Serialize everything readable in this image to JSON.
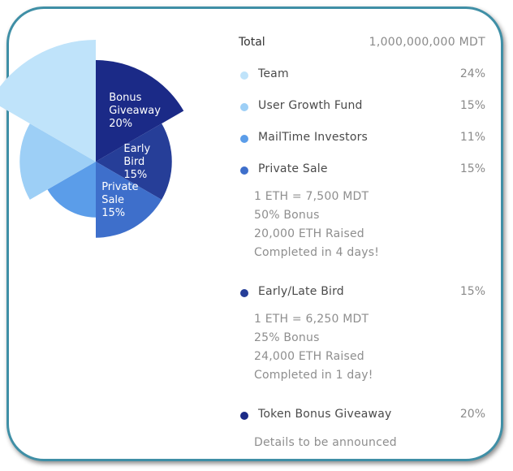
{
  "total": {
    "label": "Total",
    "value": "1,000,000,000 MDT"
  },
  "colors": {
    "team": "#bfe3fa",
    "user_growth": "#9dcff6",
    "investors": "#5b9de9",
    "private_sale": "#3e6fcb",
    "early_bird": "#263e98",
    "bonus": "#1b2a87"
  },
  "allocations": [
    {
      "name": "Team",
      "pct": "24%"
    },
    {
      "name": "User Growth Fund",
      "pct": "15%"
    },
    {
      "name": "MailTime Investors",
      "pct": "11%"
    },
    {
      "name": "Private Sale",
      "pct": "15%"
    },
    {
      "name": "Early/Late Bird",
      "pct": "15%"
    },
    {
      "name": "Token Bonus Giveaway",
      "pct": "20%"
    }
  ],
  "private_sale_details": [
    "1 ETH = 7,500 MDT",
    "50% Bonus",
    "20,000 ETH Raised",
    "Completed in 4 days!"
  ],
  "early_bird_details": [
    "1 ETH = 6,250 MDT",
    "25% Bonus",
    "24,000 ETH Raised",
    "Completed in 1 day!"
  ],
  "bonus_details": [
    "Details to be announced"
  ],
  "chart_data": {
    "type": "pie",
    "variant": "polar-area",
    "slices": [
      {
        "name": "Bonus Giveaway",
        "value": 20,
        "label_lines": [
          "Bonus",
          "Giveaway",
          "20%"
        ],
        "color": "#1b2a87"
      },
      {
        "name": "Early Bird",
        "value": 15,
        "label_lines": [
          "Early",
          "Bird",
          "15%"
        ],
        "color": "#263e98"
      },
      {
        "name": "Private Sale",
        "value": 15,
        "label_lines": [
          "Private",
          "Sale",
          "15%"
        ],
        "color": "#3e6fcb"
      },
      {
        "name": "MailTime Investors",
        "value": 11,
        "label_lines": [],
        "color": "#5b9de9"
      },
      {
        "name": "User Growth Fund",
        "value": 15,
        "label_lines": [],
        "color": "#9dcff6"
      },
      {
        "name": "Team",
        "value": 24,
        "label_lines": [],
        "color": "#bfe3fa"
      }
    ]
  }
}
